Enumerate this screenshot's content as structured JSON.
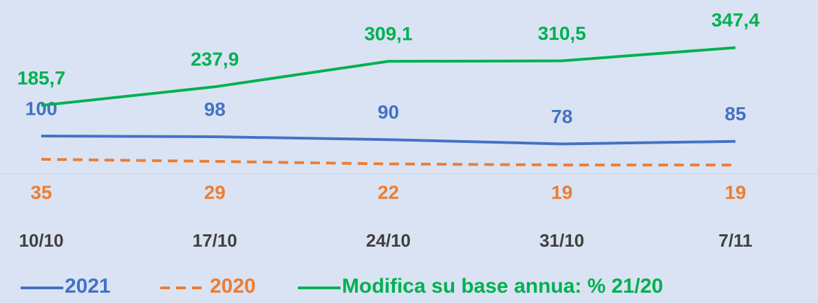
{
  "chart_data": {
    "type": "line",
    "categories": [
      "10/10",
      "17/10",
      "24/10",
      "31/10",
      "7/11"
    ],
    "series": [
      {
        "name": "2021",
        "color": "#4472c4",
        "values": [
          100,
          98,
          90,
          78,
          85
        ]
      },
      {
        "name": "2020",
        "color": "#ed7d31",
        "dashed": true,
        "values": [
          35,
          29,
          22,
          19,
          19
        ]
      },
      {
        "name": "Modifica su base annua: % 21/20",
        "color": "#00b050",
        "values": [
          185.7,
          237.9,
          309.1,
          310.5,
          347.4
        ],
        "value_labels": [
          "185,7",
          "237,9",
          "309,1",
          "310,5",
          "347,4"
        ]
      }
    ],
    "ylim": [
      0,
      400
    ]
  }
}
